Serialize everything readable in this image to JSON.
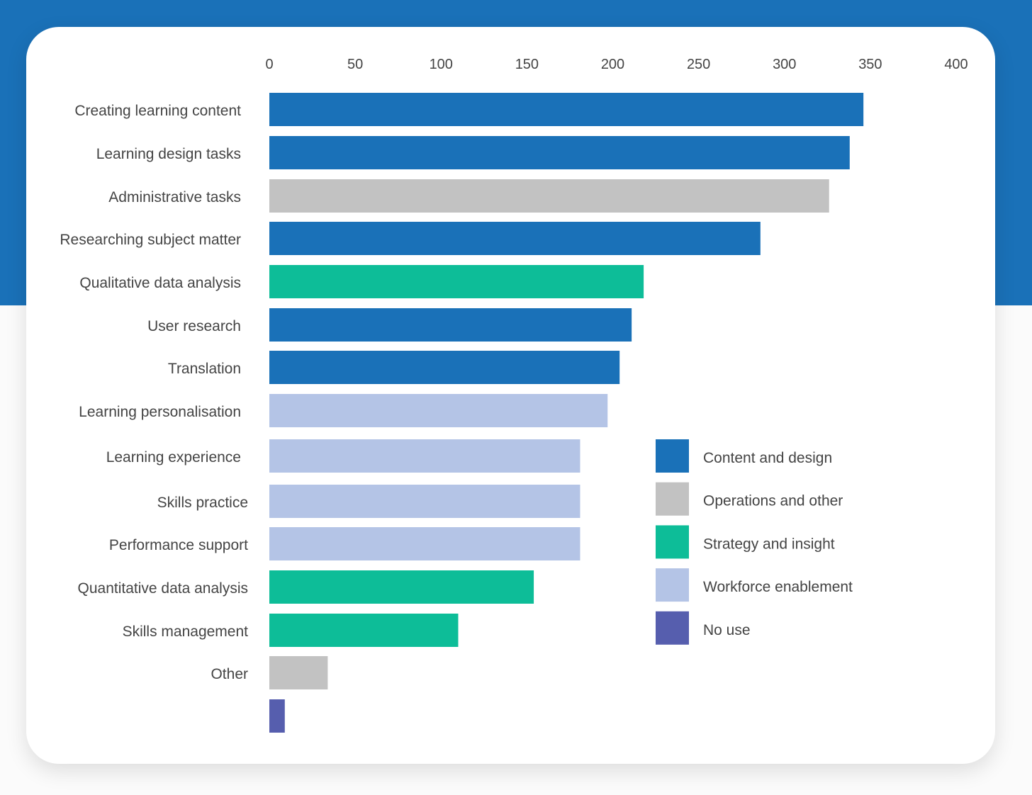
{
  "chart_data": {
    "type": "bar",
    "orientation": "horizontal",
    "title": "",
    "xlabel": "",
    "ylabel": "",
    "xlim": [
      0,
      400
    ],
    "xticks": [
      0,
      50,
      100,
      150,
      200,
      250,
      300,
      350,
      400
    ],
    "grid": false,
    "legend_position": "right",
    "categories": [
      "Creating learning content",
      "Learning design tasks",
      "Administrative tasks",
      "Researching subject matter",
      "Qualitative data analysis",
      "User research",
      "Translation",
      "Learning personalisation",
      "Learning experience",
      "Skills practice",
      "Performance support",
      "Quantitative data analysis",
      "Skills management",
      "Other",
      ""
    ],
    "values": [
      346,
      338,
      326,
      286,
      218,
      211,
      204,
      197,
      181,
      181,
      181,
      154,
      110,
      34,
      9
    ],
    "groups": [
      "Content and design",
      "Content and design",
      "Operations and other",
      "Content and design",
      "Strategy and insight",
      "Content and design",
      "Content and design",
      "Workforce enablement",
      "Workforce enablement",
      "Workforce enablement",
      "Workforce enablement",
      "Strategy and insight",
      "Strategy and insight",
      "Operations and other",
      "No use"
    ],
    "legend": [
      {
        "label": "Content and design",
        "color": "#1a71b8"
      },
      {
        "label": "Operations and other",
        "color": "#c2c2c2"
      },
      {
        "label": "Strategy and insight",
        "color": "#0dbd98"
      },
      {
        "label": "Workforce enablement",
        "color": "#b4c4e6"
      },
      {
        "label": "No use",
        "color": "#565eae"
      }
    ]
  }
}
